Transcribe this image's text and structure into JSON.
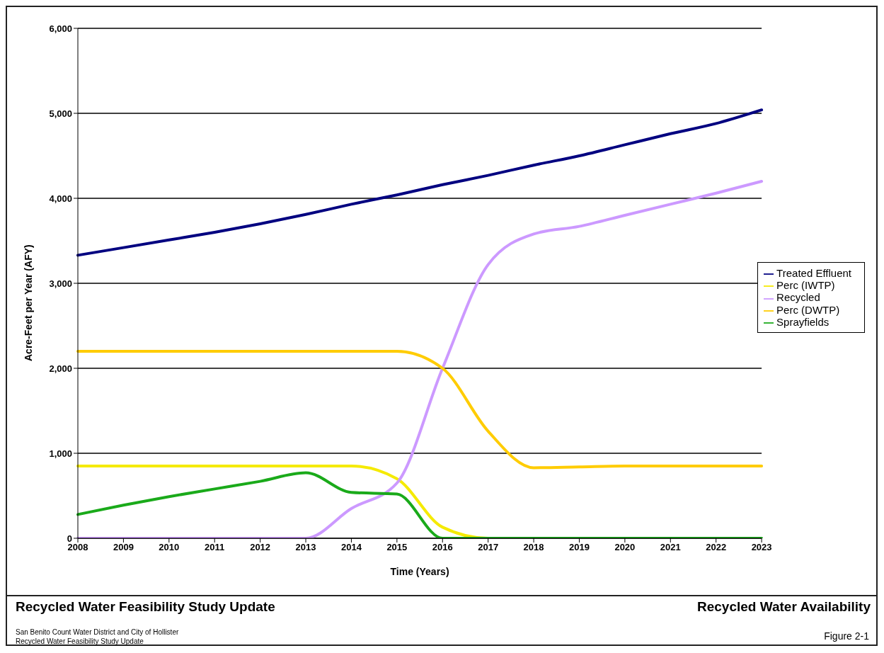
{
  "chart_data": {
    "type": "line",
    "xlabel": "Time (Years)",
    "ylabel": "Acre-Feet per Year (AFY)",
    "categories": [
      "2008",
      "2009",
      "2010",
      "2011",
      "2012",
      "2013",
      "2014",
      "2015",
      "2016",
      "2017",
      "2018",
      "2019",
      "2020",
      "2021",
      "2022",
      "2023"
    ],
    "series": [
      {
        "name": "Treated Effluent",
        "color": "#000080",
        "values": [
          3330,
          3420,
          3510,
          3600,
          3700,
          3810,
          3930,
          4040,
          4160,
          4270,
          4390,
          4500,
          4630,
          4760,
          4880,
          5040
        ]
      },
      {
        "name": "Perc (IWTP)",
        "color": "#f5ea00",
        "values": [
          850,
          850,
          850,
          850,
          850,
          850,
          850,
          700,
          130,
          0,
          0,
          null,
          null,
          null,
          null,
          null
        ]
      },
      {
        "name": "Recycled",
        "color": "#cc99ff",
        "values": [
          0,
          0,
          0,
          0,
          0,
          0,
          350,
          650,
          2000,
          3220,
          3580,
          3670,
          3800,
          3930,
          4060,
          4200
        ]
      },
      {
        "name": "Perc (DWTP)",
        "color": "#ffcc00",
        "values": [
          2200,
          2200,
          2200,
          2200,
          2200,
          2200,
          2200,
          2200,
          2000,
          1260,
          830,
          840,
          850,
          850,
          850,
          850
        ]
      },
      {
        "name": "Sprayfields",
        "color": "#1aaa1a",
        "values": [
          280,
          390,
          490,
          580,
          670,
          770,
          540,
          520,
          0,
          0,
          0,
          0,
          0,
          0,
          0,
          0
        ]
      }
    ],
    "ylim": [
      0,
      6000
    ],
    "yticks": [
      {
        "value": 0,
        "label": "0"
      },
      {
        "value": 1000,
        "label": "1,000"
      },
      {
        "value": 2000,
        "label": "2,000"
      },
      {
        "value": 3000,
        "label": "3,000"
      },
      {
        "value": 4000,
        "label": "4,000"
      },
      {
        "value": 5000,
        "label": "5,000"
      },
      {
        "value": 6000,
        "label": "6,000"
      }
    ],
    "grid": "y",
    "legend": "right",
    "marker": "none",
    "line_style": "solid",
    "annotations": [
      "Recycled Water Feasibility Study Update",
      "Recycled Water Availability",
      "San Benito Count Water District and City of Hollister",
      "Recycled Water Feasibility Study Update",
      "Figure 2-1"
    ]
  }
}
